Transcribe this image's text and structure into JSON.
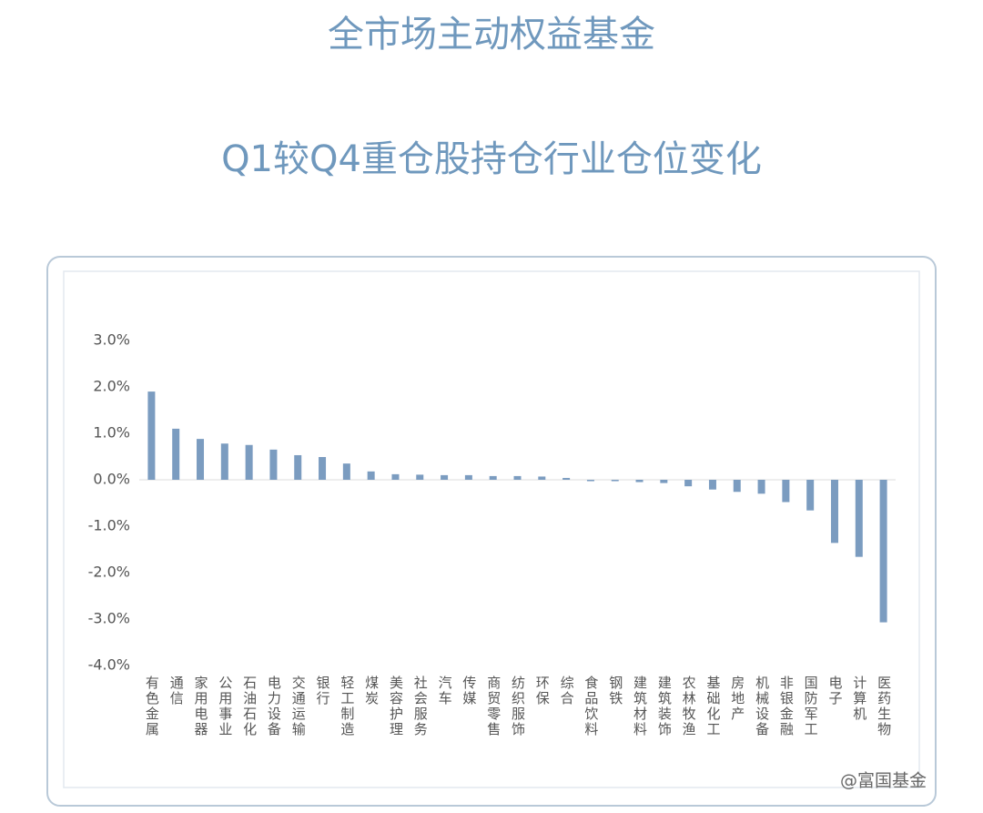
{
  "chart_data": {
    "type": "bar",
    "title": "全市场主动权益基金",
    "subtitle": "Q1较Q4重仓股持仓行业仓位变化",
    "categories": [
      "有色金属",
      "通信",
      "家用电器",
      "公用事业",
      "石油石化",
      "电力设备",
      "交通运输",
      "银行",
      "轻工制造",
      "煤炭",
      "美容护理",
      "社会服务",
      "汽车",
      "传媒",
      "商贸零售",
      "纺织服饰",
      "环保",
      "综合",
      "食品饮料",
      "钢铁",
      "建筑材料",
      "建筑装饰",
      "农林牧渔",
      "基础化工",
      "房地产",
      "机械设备",
      "非银金融",
      "国防军工",
      "电子",
      "计算机",
      "医药生物"
    ],
    "values": [
      1.9,
      1.1,
      0.88,
      0.78,
      0.75,
      0.65,
      0.53,
      0.49,
      0.35,
      0.18,
      0.12,
      0.11,
      0.1,
      0.1,
      0.08,
      0.08,
      0.07,
      0.04,
      -0.03,
      -0.03,
      -0.05,
      -0.07,
      -0.14,
      -0.21,
      -0.26,
      -0.3,
      -0.48,
      -0.66,
      -1.36,
      -1.66,
      -3.07
    ],
    "color": "#7b9cc0",
    "ylim": [
      -4,
      3
    ],
    "yticks": [
      {
        "value": 3,
        "label": "3.0%"
      },
      {
        "value": 2,
        "label": "2.0%"
      },
      {
        "value": 1,
        "label": "1.0%"
      },
      {
        "value": 0,
        "label": "0.0%"
      },
      {
        "value": -1,
        "label": "-1.0%"
      },
      {
        "value": -2,
        "label": "-2.0%"
      },
      {
        "value": -3,
        "label": "-3.0%"
      },
      {
        "value": -4,
        "label": "-4.0%"
      }
    ],
    "watermark": "@富国基金"
  }
}
